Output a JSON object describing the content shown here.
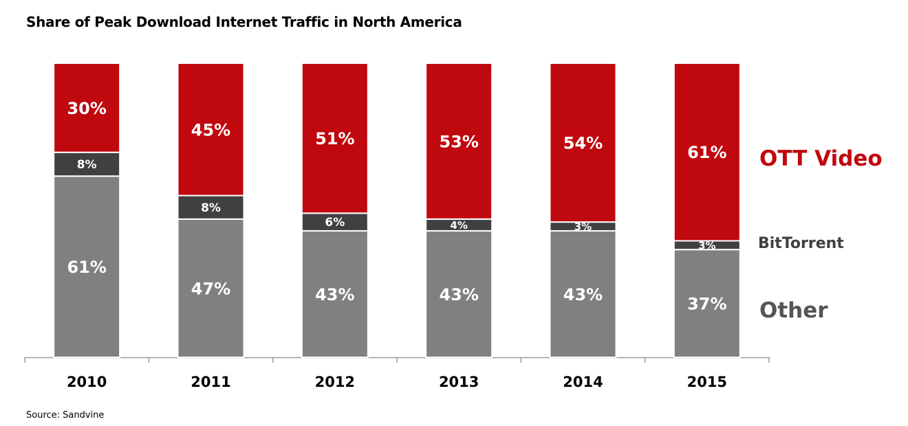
{
  "title": "Share of Peak Download Internet Traffic in North America",
  "source": "Source: Sandvine",
  "colors": {
    "ott": "#c0080f",
    "bittorrent": "#404040",
    "other": "#808080"
  },
  "chart_data": {
    "type": "bar",
    "stacked": true,
    "title": "Share of Peak Download Internet Traffic in North America",
    "categories": [
      "2010",
      "2011",
      "2012",
      "2013",
      "2014",
      "2015"
    ],
    "series": [
      {
        "name": "Other",
        "values": [
          61,
          47,
          43,
          43,
          43,
          37
        ],
        "labels": [
          "61%",
          "47%",
          "43%",
          "43%",
          "43%",
          "37%"
        ]
      },
      {
        "name": "BitTorrent",
        "values": [
          8,
          8,
          6,
          4,
          3,
          3
        ],
        "labels": [
          "8%",
          "8%",
          "6%",
          "4%",
          "3%",
          "3%"
        ]
      },
      {
        "name": "OTT Video",
        "values": [
          30,
          45,
          51,
          53,
          54,
          61
        ],
        "labels": [
          "30%",
          "45%",
          "51%",
          "53%",
          "54%",
          "61%"
        ]
      }
    ],
    "legend": [
      "OTT Video",
      "BitTorrent",
      "Other"
    ],
    "legend_placement": "right",
    "ylim": [
      0,
      100
    ],
    "grid": false
  }
}
